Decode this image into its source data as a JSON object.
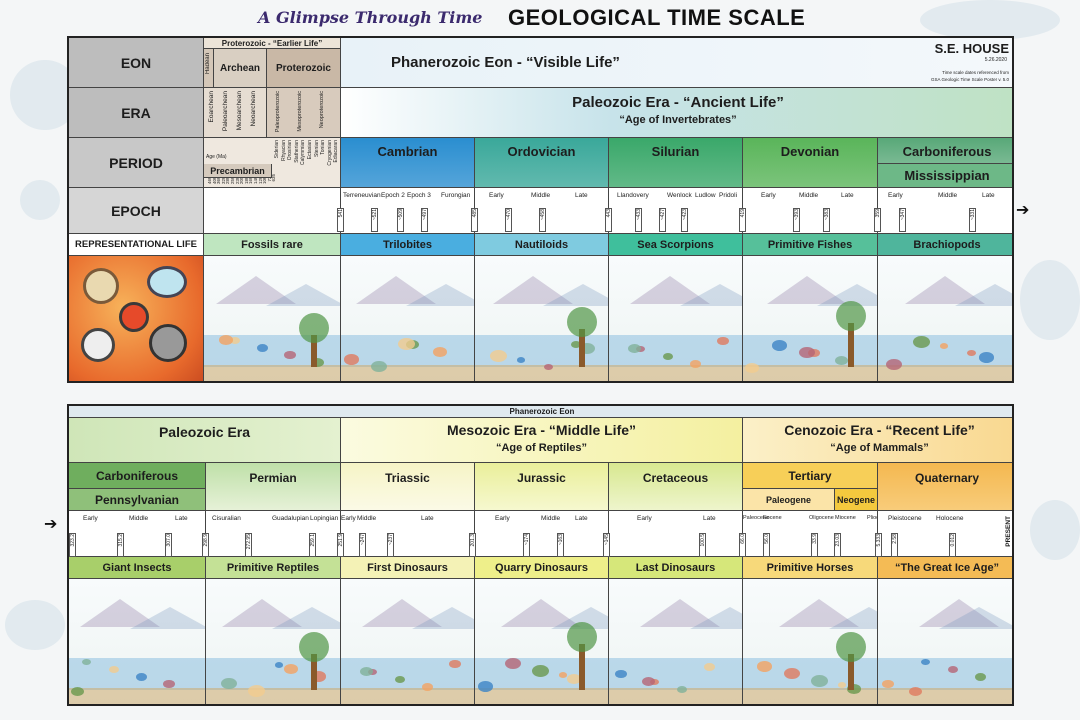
{
  "header": {
    "subtitle": "A Glimpse Through Time",
    "title": "GEOLOGICAL TIME SCALE"
  },
  "author": {
    "name": "S.E. HOUSE",
    "date": "5.26.2020",
    "note1": "Time scale dates referenced from",
    "note2": "GSA Geologic Time Scale Poster v. 5.0"
  },
  "rows": {
    "eon": "EON",
    "era": "ERA",
    "period": "PERIOD",
    "epoch": "EPOCH",
    "life": "REPRESENTATIONAL LIFE"
  },
  "top": {
    "proterozoic_header": "Proterozoic - “Earlier Life”",
    "hadean": "Hadean",
    "archean": "Archean",
    "proterozoic": "Proterozoic",
    "phanerozoic": "Phanerozoic Eon - “Visible Life”",
    "archean_eras": [
      "Eoarchean",
      "Paleoarchean",
      "Mesoarchean",
      "Neoarchean"
    ],
    "proterozoic_eras": [
      "Paleoproterozoic",
      "Mesoproterozoic",
      "Neoproterozoic"
    ],
    "precambrian_periods": [
      "Siderian",
      "Rhyacian",
      "Orosirian",
      "Statherian",
      "Calymmian",
      "Ectasian",
      "Stenian",
      "Tonian",
      "Cryogenian",
      "Ediacaran"
    ],
    "precambrian_ages": [
      "4600",
      "4000",
      "3600",
      "3200",
      "2800",
      "2500",
      "2300",
      "2050",
      "1800",
      "1600",
      "1400",
      "1200",
      "1000",
      "720",
      "635"
    ],
    "age_label": "Age (Ma)",
    "precambrian": "Precambrian",
    "paleozoic": "Paleozoic Era - “Ancient Life”",
    "paleozoic_sub": "“Age of Invertebrates”",
    "periods": [
      {
        "name": "Cambrian",
        "color": "#2a8ed0"
      },
      {
        "name": "Ordovician",
        "color": "#3aa89a"
      },
      {
        "name": "Silurian",
        "color": "#3aa86a"
      },
      {
        "name": "Devonian",
        "color": "#5ab55a"
      },
      {
        "name": "Carboniferous",
        "color": "#58a878"
      }
    ],
    "mississippian": "Mississippian",
    "epochs": {
      "cambrian": [
        "Terreneuvian",
        "Epoch 2",
        "Epoch 3",
        "Furongian"
      ],
      "ordovician": [
        "Early",
        "Middle",
        "Late"
      ],
      "silurian": [
        "Llandovery",
        "Wenlock",
        "Ludlow",
        "Pridoli"
      ],
      "devonian": [
        "Early",
        "Middle",
        "Late"
      ],
      "mississippian": [
        "Early",
        "Middle",
        "Late"
      ]
    },
    "ticks": [
      "541",
      "~521",
      "~509",
      "~497",
      "485",
      "~470",
      "~458",
      "443",
      "~433",
      "~427",
      "~423",
      "419",
      "~393",
      "~383",
      "359",
      "~347",
      "~331"
    ],
    "life": [
      "Fossils rare",
      "Trilobites",
      "Nautiloids",
      "Sea Scorpions",
      "Primitive Fishes",
      "Brachiopods"
    ]
  },
  "bottom": {
    "phanerozoic": "Phanerozoic Eon",
    "paleozoic": "Paleozoic Era",
    "mesozoic": "Mesozoic Era - “Middle Life”",
    "mesozoic_sub": "“Age of Reptiles”",
    "cenozoic": "Cenozoic Era  - “Recent Life”",
    "cenozoic_sub": "“Age of Mammals”",
    "carboniferous": "Carboniferous",
    "pennsylvanian": "Pennsylvanian",
    "permian": "Permian",
    "triassic": "Triassic",
    "jurassic": "Jurassic",
    "cretaceous": "Cretaceous",
    "tertiary": "Tertiary",
    "paleogene": "Paleogene",
    "neogene": "Neogene",
    "quaternary": "Quaternary",
    "epochs": {
      "pennsylvanian": [
        "Early",
        "Middle",
        "Late"
      ],
      "permian": [
        "Cisuralian",
        "Guadalupian",
        "Lopingian"
      ],
      "triassic": [
        "Early",
        "Middle",
        "Late"
      ],
      "jurassic": [
        "Early",
        "Middle",
        "Late"
      ],
      "cretaceous": [
        "Early",
        "Late"
      ],
      "tertiary": [
        "Paleocene",
        "Eocene",
        "Oligocene",
        "Miocene",
        "Pliocene"
      ],
      "quaternary": [
        "Pleistocene",
        "Holocene"
      ]
    },
    "present": "PRESENT",
    "ticks": [
      "323.2",
      "315.2",
      "307.0",
      "298.9",
      "272.95",
      "259.1",
      "251.9",
      "~247",
      "~237",
      "201.3",
      "~174",
      "~163",
      "~145",
      "100.5",
      "66.0",
      "56.0",
      "33.9",
      "23.03",
      "5.333",
      "2.58",
      "0.012"
    ],
    "life": [
      "Giant Insects",
      "Primitive Reptiles",
      "First Dinosaurs",
      "Quarry Dinosaurs",
      "Last Dinosaurs",
      "Primitive Horses",
      "“The Great Ice Age”"
    ]
  },
  "colors": {
    "rowhead": "#bdbdbd",
    "proterozoic_tan": "#c9b8a6",
    "cambrian": "#2a8ed0",
    "mesozoic": "#f4f0a0",
    "cenozoic": "#f7d078",
    "quaternary": "#f4b850"
  }
}
